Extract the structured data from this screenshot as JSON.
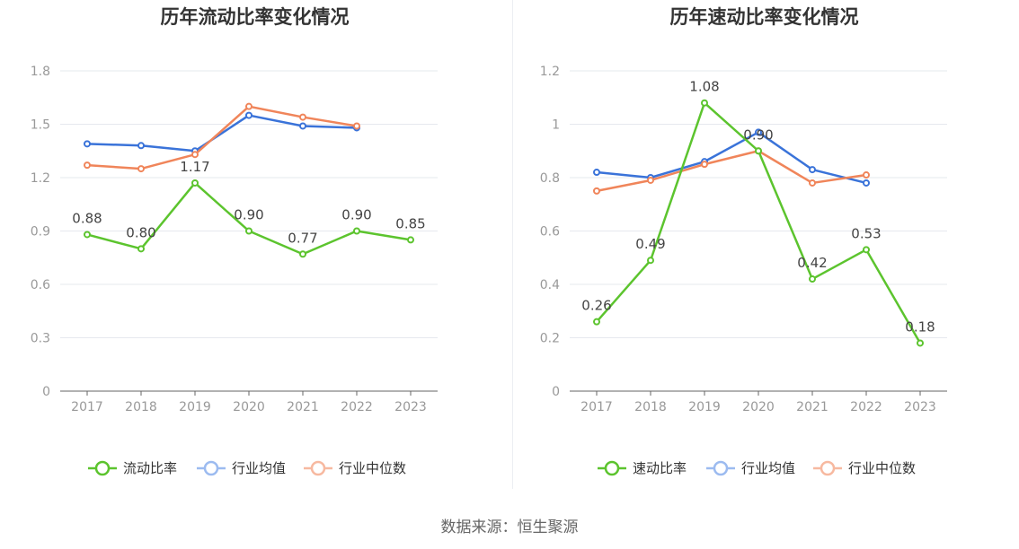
{
  "source": "数据来源：恒生聚源",
  "chart_data": [
    {
      "type": "line",
      "title": "历年流动比率变化情况",
      "categories": [
        "2017",
        "2018",
        "2019",
        "2020",
        "2021",
        "2022",
        "2023"
      ],
      "ylim": [
        0,
        1.8
      ],
      "yticks": [
        0,
        0.3,
        0.6,
        0.9,
        1.2,
        1.5,
        1.8
      ],
      "ytick_labels": [
        "0",
        "0.3",
        "0.6",
        "0.9",
        "1.2",
        "1.5",
        "1.8"
      ],
      "grid": true,
      "legend_position": "bottom",
      "series": [
        {
          "name": "流动比率",
          "color": "#5cc42e",
          "values": [
            0.88,
            0.8,
            1.17,
            0.9,
            0.77,
            0.9,
            0.85
          ],
          "labels": [
            "0.88",
            "0.80",
            "1.17",
            "0.90",
            "0.77",
            "0.90",
            "0.85"
          ]
        },
        {
          "name": "行业均值",
          "color": "#3a73d9",
          "values": [
            1.39,
            1.38,
            1.35,
            1.55,
            1.49,
            1.48,
            null
          ]
        },
        {
          "name": "行业中位数",
          "color": "#f0855a",
          "values": [
            1.27,
            1.25,
            1.33,
            1.6,
            1.54,
            1.49,
            null
          ]
        }
      ]
    },
    {
      "type": "line",
      "title": "历年速动比率变化情况",
      "categories": [
        "2017",
        "2018",
        "2019",
        "2020",
        "2021",
        "2022",
        "2023"
      ],
      "ylim": [
        0,
        1.2
      ],
      "yticks": [
        0,
        0.2,
        0.4,
        0.6,
        0.8,
        1.0,
        1.2
      ],
      "ytick_labels": [
        "0",
        "0.2",
        "0.4",
        "0.6",
        "0.8",
        "1",
        "1.2"
      ],
      "grid": true,
      "legend_position": "bottom",
      "series": [
        {
          "name": "速动比率",
          "color": "#5cc42e",
          "values": [
            0.26,
            0.49,
            1.08,
            0.9,
            0.42,
            0.53,
            0.18
          ],
          "labels": [
            "0.26",
            "0.49",
            "1.08",
            "0.90",
            "0.42",
            "0.53",
            "0.18"
          ]
        },
        {
          "name": "行业均值",
          "color": "#3a73d9",
          "values": [
            0.82,
            0.8,
            0.86,
            0.97,
            0.83,
            0.78,
            null
          ]
        },
        {
          "name": "行业中位数",
          "color": "#f0855a",
          "values": [
            0.75,
            0.79,
            0.85,
            0.9,
            0.78,
            0.81,
            null
          ]
        }
      ]
    }
  ]
}
